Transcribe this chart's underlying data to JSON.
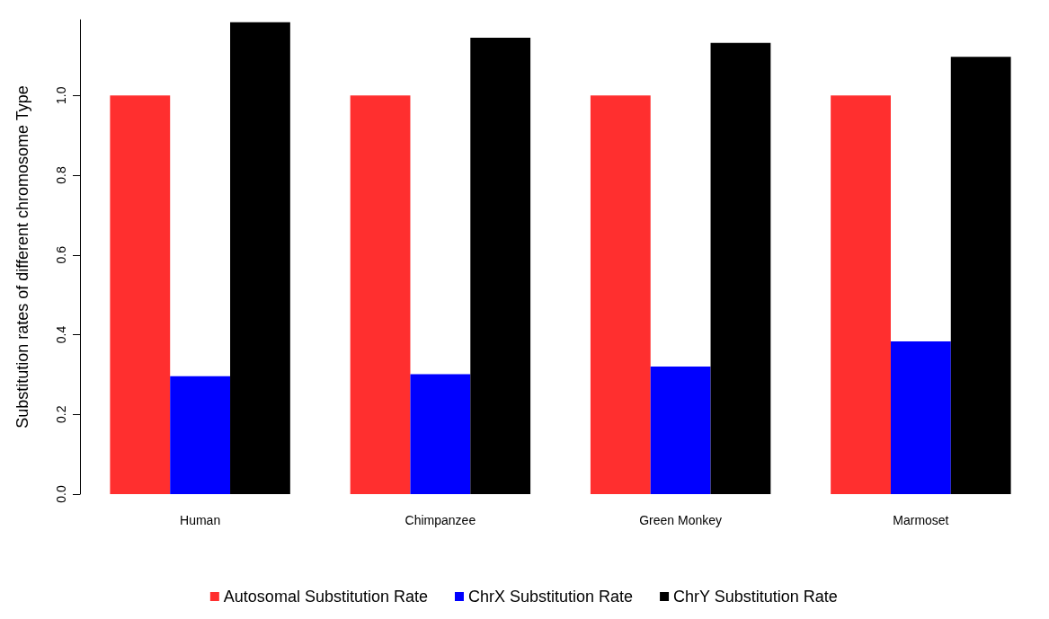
{
  "chart_data": {
    "type": "bar",
    "ylabel": "Substitution rates of different chromosome Type",
    "categories": [
      "Human",
      "Chimpanzee",
      "Green Monkey",
      "Marmoset"
    ],
    "series": [
      {
        "name": "Autosomal Substitution Rate",
        "color": "#ff2f2f",
        "values": [
          1.0,
          1.0,
          1.0,
          1.0
        ]
      },
      {
        "name": "ChrX Substitution Rate",
        "color": "#0000ff",
        "values": [
          0.296,
          0.301,
          0.32,
          0.383
        ]
      },
      {
        "name": "ChrY Substitution Rate",
        "color": "#000000",
        "values": [
          1.184,
          1.145,
          1.132,
          1.097
        ]
      }
    ],
    "ylim": [
      0,
      1.19
    ],
    "yticks": [
      {
        "value": 0,
        "label": "0.0"
      },
      {
        "value": 0.2,
        "label": "0.2"
      },
      {
        "value": 0.4,
        "label": "0.4"
      },
      {
        "value": 0.6,
        "label": "0.6"
      },
      {
        "value": 0.8,
        "label": "0.8"
      },
      {
        "value": 1,
        "label": "1.0"
      }
    ],
    "grid": false,
    "legend": "bottom"
  }
}
